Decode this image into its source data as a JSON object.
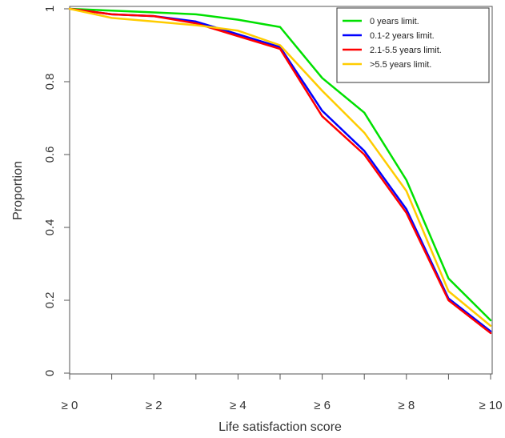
{
  "chart_data": {
    "type": "line",
    "title": "",
    "xlabel": "Life satisfaction score",
    "ylabel": "Proportion",
    "x": [
      0,
      1,
      2,
      3,
      4,
      5,
      6,
      7,
      8,
      9,
      10
    ],
    "x_tick_labels": [
      "≥ 0",
      "≥ 2",
      "≥ 4",
      "≥ 6",
      "≥ 8",
      "≥ 10"
    ],
    "x_tick_values": [
      0,
      2,
      4,
      6,
      8,
      10
    ],
    "y_tick_labels": [
      "0",
      "0.2",
      "0.4",
      "0.6",
      "0.8",
      "1"
    ],
    "y_tick_values": [
      0,
      0.2,
      0.4,
      0.6,
      0.8,
      1.0
    ],
    "xlim": [
      0,
      10
    ],
    "ylim": [
      0,
      1
    ],
    "grid": false,
    "legend_position": "top-right",
    "series": [
      {
        "name": "0 years limit.",
        "color": "#00e000",
        "values": [
          1.0,
          0.995,
          0.99,
          0.985,
          0.97,
          0.95,
          0.81,
          0.715,
          0.53,
          0.26,
          0.145
        ]
      },
      {
        "name": "0.1-2 years limit.",
        "color": "#0000ff",
        "values": [
          1.0,
          0.985,
          0.98,
          0.965,
          0.93,
          0.895,
          0.72,
          0.61,
          0.45,
          0.205,
          0.115
        ]
      },
      {
        "name": "2.1-5.5 years limit.",
        "color": "#ff0000",
        "values": [
          1.0,
          0.985,
          0.98,
          0.96,
          0.925,
          0.89,
          0.705,
          0.6,
          0.44,
          0.2,
          0.11
        ]
      },
      {
        "name": ">5.5 years limit.",
        "color": "#ffcc00",
        "values": [
          1.0,
          0.975,
          0.965,
          0.955,
          0.94,
          0.9,
          0.775,
          0.66,
          0.5,
          0.225,
          0.13
        ]
      }
    ]
  }
}
